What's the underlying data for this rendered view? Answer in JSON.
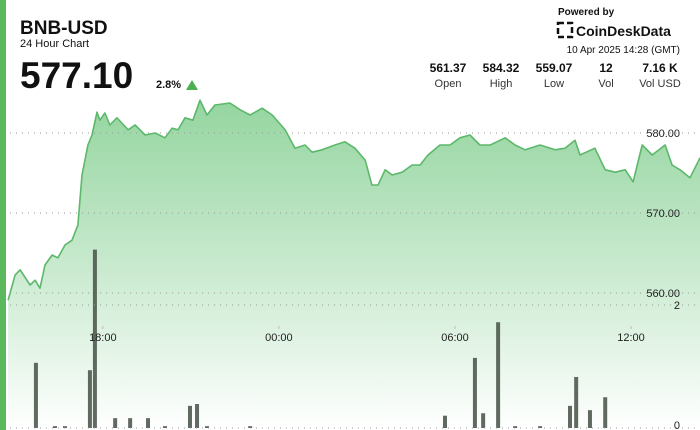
{
  "header": {
    "title": "BNB-USD",
    "subtitle": "24 Hour Chart",
    "price": "577.10",
    "change": "2.8%",
    "powered_by": "Powered by",
    "brand": "CoinDeskData",
    "timestamp": "10 Apr 2025 14:28 (GMT)"
  },
  "stats": [
    {
      "value": "561.37",
      "label": "Open"
    },
    {
      "value": "584.32",
      "label": "High"
    },
    {
      "value": "559.07",
      "label": "Low"
    },
    {
      "value": "12",
      "label": "Vol"
    },
    {
      "value": "7.16 K",
      "label": "Vol USD"
    }
  ],
  "chart_data": {
    "type": "line",
    "color": "#5cb86a",
    "x": [
      14.77,
      15.01,
      15.18,
      15.52,
      15.69,
      15.86,
      16.03,
      16.27,
      16.47,
      16.71,
      16.95,
      17.15,
      17.29,
      17.49,
      17.63,
      17.8,
      17.9,
      18.07,
      18.24,
      18.48,
      18.86,
      19.1,
      19.44,
      19.78,
      20.12,
      20.36,
      20.56,
      20.8,
      21.07,
      21.31,
      21.55,
      21.82,
      22.33,
      22.68,
      23.02,
      23.43,
      23.77,
      24.21,
      24.55,
      24.89,
      25.13,
      25.47,
      25.91,
      26.25,
      26.59,
      26.94,
      27.17,
      27.38,
      27.62,
      27.86,
      28.2,
      28.54,
      28.81,
      29.08,
      29.49,
      29.83,
      30.17,
      30.51,
      30.85,
      31.2,
      31.71,
      32.05,
      32.39,
      32.9,
      33.41,
      33.75,
      34.09,
      34.26,
      34.77,
      35.12,
      35.46,
      35.8,
      36.07,
      36.38,
      36.72,
      37.16,
      37.4,
      37.67,
      38.01,
      38.35
    ],
    "values": [
      559.1,
      562.25,
      562.9,
      561.0,
      561.6,
      560.6,
      563.5,
      564.75,
      564.4,
      566.0,
      566.6,
      568.5,
      574.75,
      578.5,
      579.75,
      582.6,
      581.6,
      582.5,
      581.0,
      581.9,
      580.4,
      581.0,
      579.75,
      580.0,
      579.4,
      580.6,
      580.4,
      581.9,
      581.6,
      584.1,
      582.25,
      583.5,
      583.75,
      582.9,
      582.25,
      583.1,
      582.25,
      580.4,
      578.1,
      578.5,
      577.6,
      577.9,
      578.5,
      578.9,
      578.1,
      576.6,
      573.5,
      573.5,
      575.4,
      574.75,
      575.1,
      576.0,
      576.0,
      577.25,
      578.5,
      578.5,
      579.4,
      579.75,
      578.5,
      578.5,
      579.4,
      578.5,
      577.9,
      578.5,
      577.9,
      578.1,
      579.1,
      577.25,
      578.1,
      575.4,
      575.1,
      575.4,
      573.9,
      578.5,
      577.25,
      578.5,
      576.0,
      575.4,
      574.4,
      576.9
    ],
    "xlim": [
      14.7,
      38.35
    ],
    "xticks": [
      {
        "value": 18,
        "label": "18:00"
      },
      {
        "value": 24,
        "label": "00:00"
      },
      {
        "value": 30,
        "label": "06:00"
      },
      {
        "value": 36,
        "label": "12:00"
      }
    ],
    "ylim": [
      545,
      585
    ],
    "yticks": [
      {
        "value": 560,
        "label": "560.00"
      },
      {
        "value": 570,
        "label": "570.00"
      },
      {
        "value": 580,
        "label": "580.00"
      }
    ],
    "grid": true,
    "volume": {
      "color": "#4f5a4f",
      "x": [
        15.72,
        16.37,
        16.71,
        17.56,
        17.73,
        18.42,
        18.93,
        19.54,
        20.12,
        20.97,
        21.21,
        21.55,
        23.02,
        29.66,
        30.68,
        30.96,
        31.47,
        32.05,
        32.9,
        33.92,
        34.13,
        34.6,
        35.12
      ],
      "values": [
        1.06,
        0.03,
        0.03,
        0.94,
        2.9,
        0.16,
        0.16,
        0.16,
        0.03,
        0.36,
        0.39,
        0.03,
        0.03,
        0.2,
        1.14,
        0.24,
        1.72,
        0.03,
        0.03,
        0.36,
        0.83,
        0.29,
        0.5
      ]
    },
    "y2lim": [
      0,
      3
    ],
    "y2ticks": [
      0,
      2
    ]
  }
}
